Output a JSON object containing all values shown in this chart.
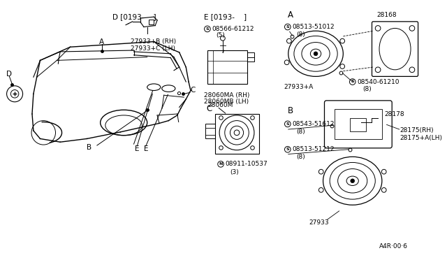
{
  "bg_color": "#ffffff",
  "line_color": "#000000",
  "fs": 6.5,
  "fm": 7.5,
  "diagram_code": "A4R·00·6",
  "labels": {
    "D_header": "D [0193-    ]",
    "E_header": "E [0193-    ]",
    "part_D": "27933+B (RH)\n27933+C (LH)",
    "part_E_screw": "08566-61212",
    "part_E_screw_qty": "(5)",
    "part_E_box1": "28060MA (RH)",
    "part_E_box2": "28060MB (LH)",
    "part_C_label": "C",
    "part_C_motor": "28060M",
    "part_C_nut": "08911-10537",
    "part_C_nut_qty": "(3)",
    "part_A_label": "A",
    "part_A_screw1": "08513-51012",
    "part_A_screw1_qty": "(8)",
    "part_A_speaker": "27933+A",
    "part_A_screw2": "08540-61210",
    "part_A_screw2_qty": "(8)",
    "part_A_grille": "28168",
    "part_B_label": "B",
    "part_B_screw1": "08543-51612",
    "part_B_screw1_qty": "(8)",
    "part_B_grille_label": "28178",
    "part_B_bracket": "28175(RH)\n28175+A(LH)",
    "part_B_screw2": "08513-51212",
    "part_B_screw2_qty": "(8)",
    "part_B_speaker": "27933"
  }
}
